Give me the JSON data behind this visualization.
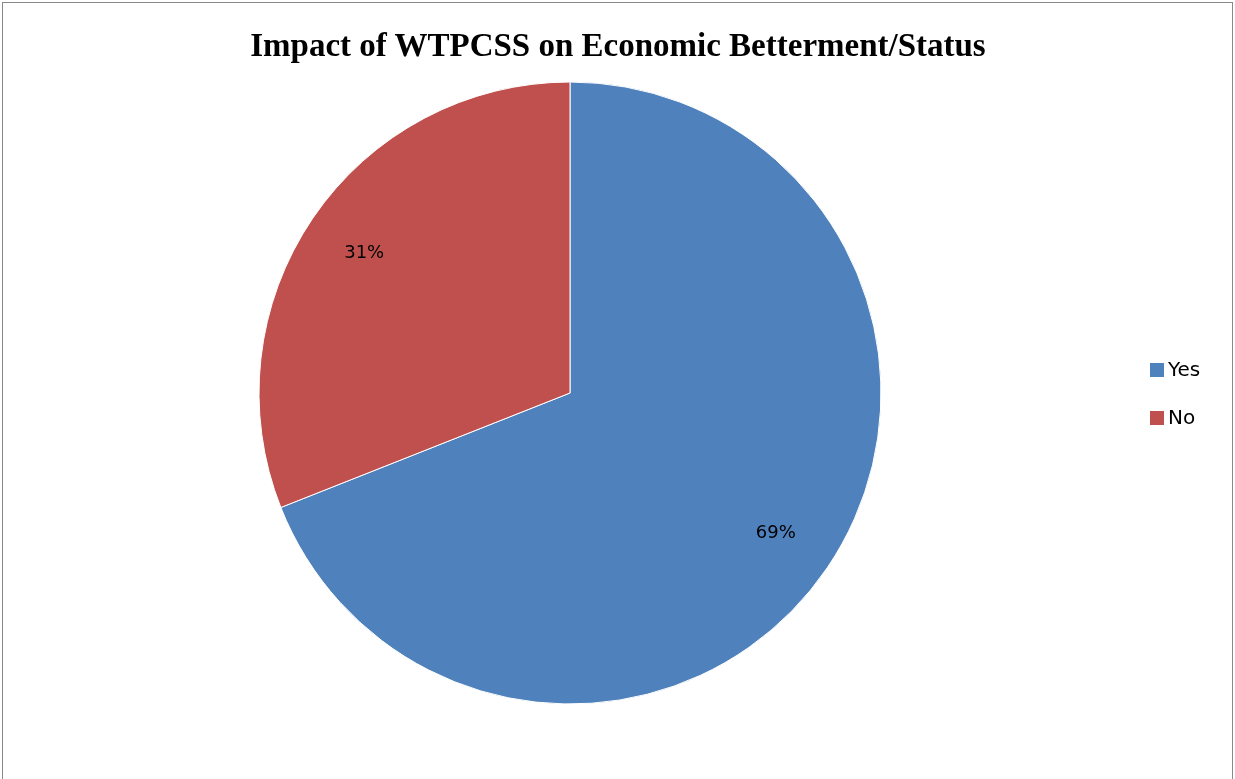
{
  "chart_data": {
    "type": "pie",
    "title": "Impact of WTPCSS on Economic Betterment/Status",
    "categories": [
      "Yes",
      "No"
    ],
    "values": [
      69,
      31
    ],
    "colors": [
      "#4f81bd",
      "#c0504d"
    ],
    "value_labels": [
      "69%",
      "31%"
    ],
    "legend": "right"
  }
}
